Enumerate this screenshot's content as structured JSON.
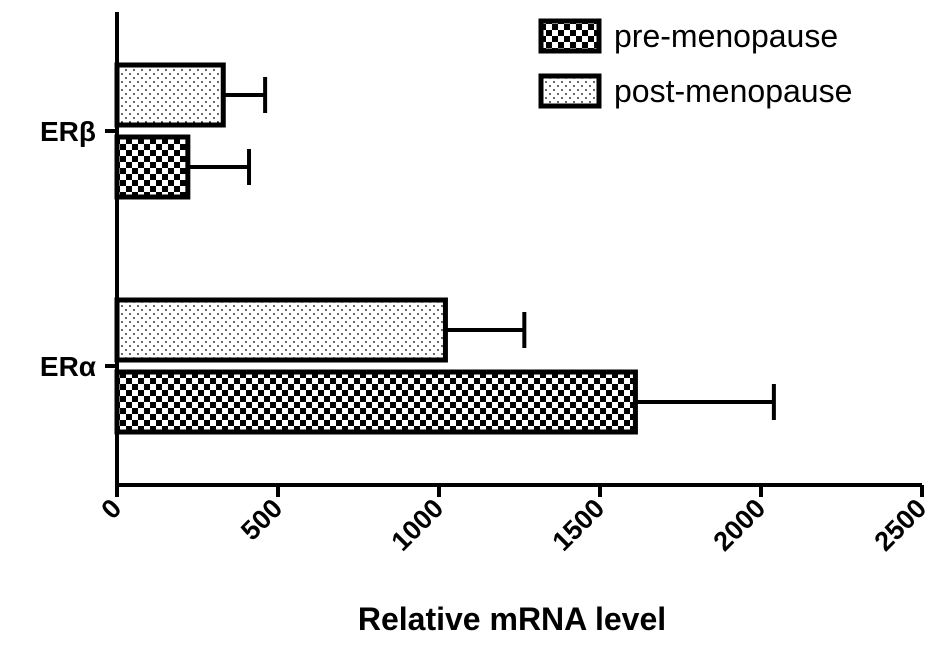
{
  "chart_data": {
    "type": "bar",
    "orientation": "horizontal",
    "categories": [
      "ERβ",
      "ERα"
    ],
    "series": [
      {
        "name": "pre-menopause",
        "pattern": "checkerboard",
        "values": [
          220,
          1610
        ],
        "errors": [
          190,
          430
        ]
      },
      {
        "name": "post-menopause",
        "pattern": "dotted",
        "values": [
          330,
          1020
        ],
        "errors": [
          130,
          245
        ]
      }
    ],
    "xlabel": "Relative mRNA level",
    "xlim": [
      0,
      2500
    ],
    "xticks": [
      0,
      500,
      1000,
      1500,
      2000,
      2500
    ],
    "xtick_labels": [
      "0",
      "500",
      "1000",
      "1500",
      "2000",
      "2500"
    ],
    "grid": false,
    "legend_position": "top-right"
  }
}
